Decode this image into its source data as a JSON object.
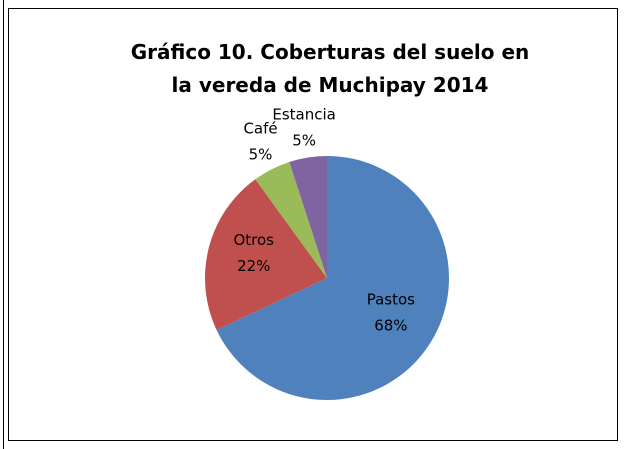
{
  "chart_data": {
    "type": "pie",
    "title": "Gráfico 10. Coberturas del suelo en la vereda de Muchipay 2014",
    "categories": [
      "Pastos",
      "Otros",
      "Café",
      "Estancia"
    ],
    "values": [
      68,
      22,
      5,
      5
    ],
    "value_labels": [
      "68%",
      "22%",
      "5%",
      "5%"
    ],
    "colors": [
      "#4f81bd",
      "#c0504d",
      "#9bbb59",
      "#8064a2"
    ]
  }
}
